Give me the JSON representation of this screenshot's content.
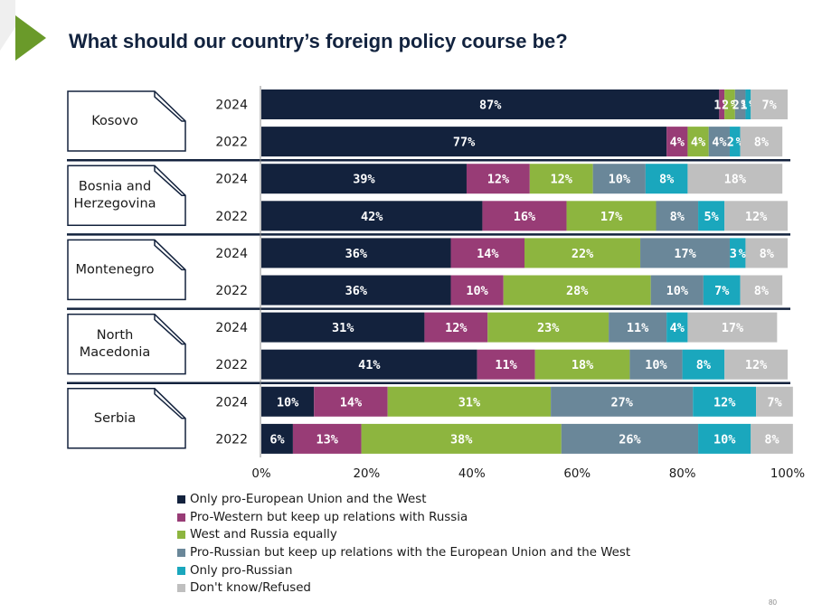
{
  "title": "What should our country’s foreign policy course be?",
  "page_number": "80",
  "colors": {
    "accent": "#6a9a2a",
    "title": "#12233f"
  },
  "chart_data": {
    "type": "bar",
    "orientation": "horizontal",
    "stacked": true,
    "percent_stacked": true,
    "groups": [
      {
        "label": "Kosovo",
        "years": [
          "2024",
          "2022"
        ]
      },
      {
        "label": "Bosnia and\nHerzegovina",
        "years": [
          "2024",
          "2022"
        ]
      },
      {
        "label": "Montenegro",
        "years": [
          "2024",
          "2022"
        ]
      },
      {
        "label": "North\nMacedonia",
        "years": [
          "2024",
          "2022"
        ]
      },
      {
        "label": "Serbia",
        "years": [
          "2024",
          "2022"
        ]
      }
    ],
    "series": [
      {
        "name": "Only pro-European Union and the West",
        "color": "#13223d",
        "values": [
          87,
          77,
          39,
          42,
          36,
          36,
          31,
          41,
          10,
          6
        ]
      },
      {
        "name": "Pro-Western but keep up relations with Russia",
        "color": "#983c76",
        "values": [
          1,
          4,
          12,
          16,
          14,
          10,
          12,
          11,
          14,
          13
        ]
      },
      {
        "name": "West and Russia equally",
        "color": "#8db53f",
        "values": [
          2,
          4,
          12,
          17,
          22,
          28,
          23,
          18,
          31,
          38
        ]
      },
      {
        "name": "Pro-Russian but keep up relations with the European Union and the West",
        "color": "#6a8799",
        "values": [
          2,
          4,
          10,
          8,
          17,
          10,
          11,
          10,
          27,
          26
        ]
      },
      {
        "name": "Only pro-Russian",
        "color": "#1aa7bd",
        "values": [
          1,
          2,
          8,
          5,
          3,
          7,
          4,
          8,
          12,
          10
        ]
      },
      {
        "name": "Don't know/Refused",
        "color": "#bfbfbf",
        "values": [
          7,
          8,
          18,
          12,
          8,
          8,
          17,
          12,
          7,
          8
        ]
      }
    ],
    "xlim": [
      0,
      100
    ],
    "xticks": [
      "0%",
      "20%",
      "40%",
      "60%",
      "80%",
      "100%"
    ],
    "value_suffix": "%",
    "grid": false,
    "legend_position": "bottom-left"
  }
}
